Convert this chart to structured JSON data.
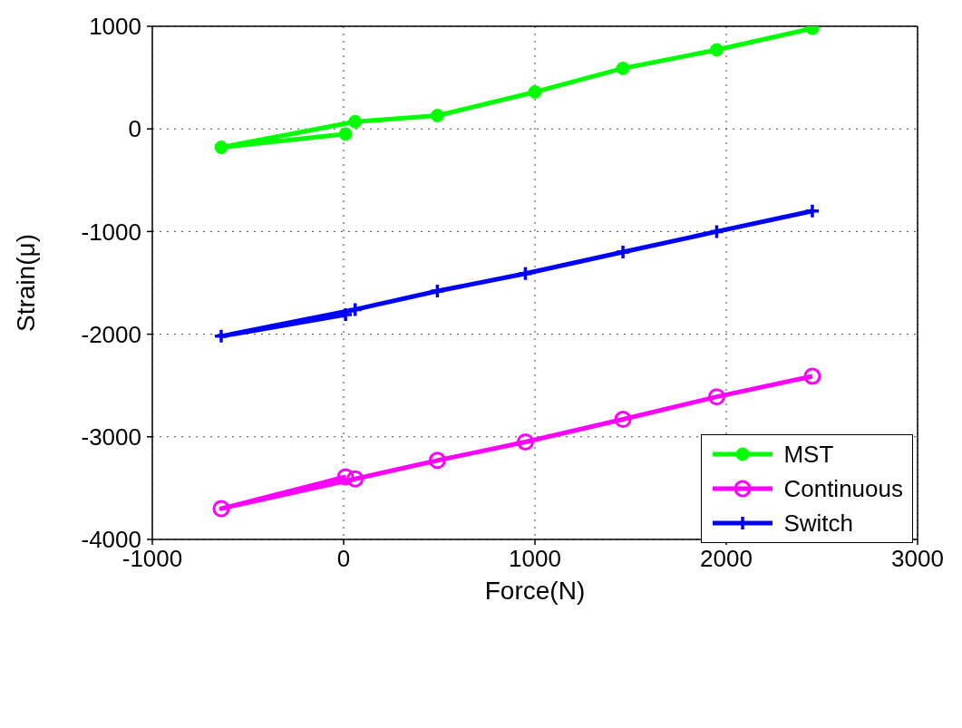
{
  "chart_data": {
    "type": "line",
    "xlabel": "Force(N)",
    "ylabel": "Strain(μ)",
    "xlim": [
      -1000,
      3000
    ],
    "xticks": [
      -1000,
      0,
      1000,
      2000,
      3000
    ],
    "ylim": [
      -4000,
      1000
    ],
    "yticks": [
      -4000,
      -3000,
      -2000,
      -1000,
      0,
      1000
    ],
    "grid": true,
    "legend": "bottom right",
    "line_style": "solid",
    "series": [
      {
        "name": "MST",
        "color": "#00ff00",
        "marker": "circle",
        "x": [
          10,
          -640,
          60,
          490,
          1000,
          1460,
          1950,
          2450
        ],
        "values": [
          -50,
          -180,
          70,
          130,
          360,
          590,
          770,
          980
        ]
      },
      {
        "name": "Continuous",
        "color": "#ff00ff",
        "marker": "open_circle",
        "x": [
          10,
          -640,
          60,
          490,
          950,
          1460,
          1950,
          2450
        ],
        "values": [
          -3390,
          -3700,
          -3410,
          -3230,
          -3050,
          -2830,
          -2610,
          -2410
        ]
      },
      {
        "name": "Switch",
        "color": "#0000ff",
        "marker": "cross",
        "x": [
          10,
          -640,
          60,
          490,
          950,
          1460,
          1950,
          2450
        ],
        "values": [
          -1810,
          -2020,
          -1760,
          -1580,
          -1410,
          -1200,
          -1000,
          -800
        ]
      }
    ]
  }
}
